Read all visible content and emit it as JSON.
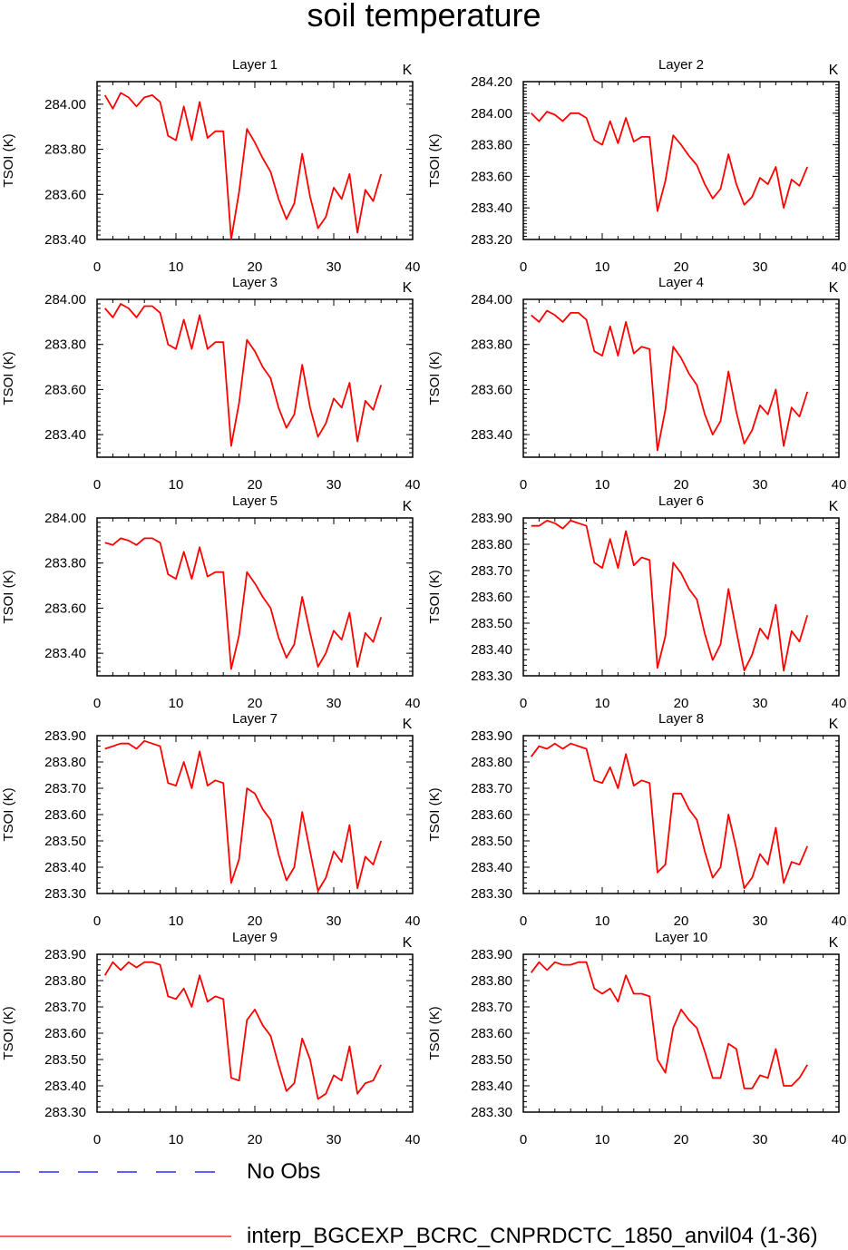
{
  "title": "soil temperature",
  "colors": {
    "model_line": "#ff0000",
    "obs_line": "#0000ff",
    "axes": "#000000"
  },
  "legend": [
    {
      "label": "No Obs",
      "style": "dashed",
      "color": "#0000ff"
    },
    {
      "label": "interp_BGCEXP_BCRC_CNPRDCTC_1850_anvil04 (1-36)",
      "style": "solid",
      "color": "#ff0000"
    }
  ],
  "chart_data": [
    {
      "type": "line",
      "title": "Layer 1",
      "units": "K",
      "ylabel": "TSOI  (K)",
      "xlim": [
        0,
        40
      ],
      "ylim": [
        283.4,
        284.1
      ],
      "xticks": [
        0,
        10,
        20,
        30,
        40
      ],
      "yticks": [
        283.4,
        283.6,
        283.8,
        284.0
      ],
      "ytick_labels": [
        "283.40",
        "283.60",
        "283.80",
        "284.00"
      ],
      "x": [
        1,
        2,
        3,
        4,
        5,
        6,
        7,
        8,
        9,
        10,
        11,
        12,
        13,
        14,
        15,
        16,
        17,
        18,
        19,
        20,
        21,
        22,
        23,
        24,
        25,
        26,
        27,
        28,
        29,
        30,
        31,
        32,
        33,
        34,
        35,
        36
      ],
      "series": [
        {
          "name": "interp_BGCEXP_BCRC_CNPRDCTC_1850_anvil04 (1-36)",
          "values": [
            284.04,
            283.98,
            284.05,
            284.03,
            283.99,
            284.03,
            284.04,
            284.01,
            283.86,
            283.84,
            283.99,
            283.84,
            284.01,
            283.85,
            283.88,
            283.88,
            283.4,
            283.61,
            283.89,
            283.83,
            283.76,
            283.7,
            283.58,
            283.49,
            283.56,
            283.78,
            283.59,
            283.45,
            283.5,
            283.63,
            283.58,
            283.69,
            283.43,
            283.62,
            283.57,
            283.69
          ]
        }
      ]
    },
    {
      "type": "line",
      "title": "Layer 2",
      "units": "K",
      "ylabel": "TSOI  (K)",
      "xlim": [
        0,
        40
      ],
      "ylim": [
        283.2,
        284.2
      ],
      "xticks": [
        0,
        10,
        20,
        30,
        40
      ],
      "yticks": [
        283.2,
        283.4,
        283.6,
        283.8,
        284.0,
        284.2
      ],
      "ytick_labels": [
        "283.20",
        "283.40",
        "283.60",
        "283.80",
        "284.00",
        "284.20"
      ],
      "x": [
        1,
        2,
        3,
        4,
        5,
        6,
        7,
        8,
        9,
        10,
        11,
        12,
        13,
        14,
        15,
        16,
        17,
        18,
        19,
        20,
        21,
        22,
        23,
        24,
        25,
        26,
        27,
        28,
        29,
        30,
        31,
        32,
        33,
        34,
        35,
        36
      ],
      "series": [
        {
          "name": "interp_BGCEXP_BCRC_CNPRDCTC_1850_anvil04 (1-36)",
          "values": [
            284.0,
            283.95,
            284.01,
            283.99,
            283.95,
            284.0,
            284.0,
            283.97,
            283.83,
            283.8,
            283.95,
            283.81,
            283.97,
            283.82,
            283.85,
            283.85,
            283.38,
            283.57,
            283.86,
            283.8,
            283.73,
            283.67,
            283.55,
            283.46,
            283.52,
            283.74,
            283.55,
            283.42,
            283.47,
            283.59,
            283.55,
            283.66,
            283.4,
            283.58,
            283.54,
            283.66
          ]
        }
      ]
    },
    {
      "type": "line",
      "title": "Layer 3",
      "units": "K",
      "ylabel": "TSOI  (K)",
      "xlim": [
        0,
        40
      ],
      "ylim": [
        283.3,
        284.0
      ],
      "xticks": [
        0,
        10,
        20,
        30,
        40
      ],
      "yticks": [
        283.4,
        283.6,
        283.8,
        284.0
      ],
      "ytick_labels": [
        "283.40",
        "283.60",
        "283.80",
        "284.00"
      ],
      "x": [
        1,
        2,
        3,
        4,
        5,
        6,
        7,
        8,
        9,
        10,
        11,
        12,
        13,
        14,
        15,
        16,
        17,
        18,
        19,
        20,
        21,
        22,
        23,
        24,
        25,
        26,
        27,
        28,
        29,
        30,
        31,
        32,
        33,
        34,
        35,
        36
      ],
      "series": [
        {
          "name": "interp_BGCEXP_BCRC_CNPRDCTC_1850_anvil04 (1-36)",
          "values": [
            283.96,
            283.92,
            283.98,
            283.96,
            283.92,
            283.97,
            283.97,
            283.94,
            283.8,
            283.78,
            283.91,
            283.78,
            283.93,
            283.78,
            283.81,
            283.81,
            283.35,
            283.54,
            283.82,
            283.77,
            283.7,
            283.65,
            283.52,
            283.43,
            283.49,
            283.71,
            283.52,
            283.39,
            283.45,
            283.56,
            283.52,
            283.63,
            283.37,
            283.55,
            283.51,
            283.62
          ]
        }
      ]
    },
    {
      "type": "line",
      "title": "Layer 4",
      "units": "K",
      "ylabel": "TSOI  (K)",
      "xlim": [
        0,
        40
      ],
      "ylim": [
        283.3,
        284.0
      ],
      "xticks": [
        0,
        10,
        20,
        30,
        40
      ],
      "yticks": [
        283.4,
        283.6,
        283.8,
        284.0
      ],
      "ytick_labels": [
        "283.40",
        "283.60",
        "283.80",
        "284.00"
      ],
      "x": [
        1,
        2,
        3,
        4,
        5,
        6,
        7,
        8,
        9,
        10,
        11,
        12,
        13,
        14,
        15,
        16,
        17,
        18,
        19,
        20,
        21,
        22,
        23,
        24,
        25,
        26,
        27,
        28,
        29,
        30,
        31,
        32,
        33,
        34,
        35,
        36
      ],
      "series": [
        {
          "name": "interp_BGCEXP_BCRC_CNPRDCTC_1850_anvil04 (1-36)",
          "values": [
            283.93,
            283.9,
            283.95,
            283.93,
            283.9,
            283.94,
            283.94,
            283.91,
            283.77,
            283.75,
            283.88,
            283.75,
            283.9,
            283.76,
            283.79,
            283.78,
            283.33,
            283.51,
            283.79,
            283.74,
            283.67,
            283.62,
            283.49,
            283.4,
            283.46,
            283.68,
            283.5,
            283.36,
            283.42,
            283.53,
            283.49,
            283.6,
            283.35,
            283.52,
            283.48,
            283.59
          ]
        }
      ]
    },
    {
      "type": "line",
      "title": "Layer 5",
      "units": "K",
      "ylabel": "TSOI  (K)",
      "xlim": [
        0,
        40
      ],
      "ylim": [
        283.3,
        284.0
      ],
      "xticks": [
        0,
        10,
        20,
        30,
        40
      ],
      "yticks": [
        283.4,
        283.6,
        283.8,
        284.0
      ],
      "ytick_labels": [
        "283.40",
        "283.60",
        "283.80",
        "284.00"
      ],
      "x": [
        1,
        2,
        3,
        4,
        5,
        6,
        7,
        8,
        9,
        10,
        11,
        12,
        13,
        14,
        15,
        16,
        17,
        18,
        19,
        20,
        21,
        22,
        23,
        24,
        25,
        26,
        27,
        28,
        29,
        30,
        31,
        32,
        33,
        34,
        35,
        36
      ],
      "series": [
        {
          "name": "interp_BGCEXP_BCRC_CNPRDCTC_1850_anvil04 (1-36)",
          "values": [
            283.89,
            283.88,
            283.91,
            283.9,
            283.88,
            283.91,
            283.91,
            283.89,
            283.75,
            283.73,
            283.85,
            283.73,
            283.87,
            283.74,
            283.76,
            283.76,
            283.33,
            283.48,
            283.76,
            283.71,
            283.65,
            283.6,
            283.47,
            283.38,
            283.44,
            283.65,
            283.49,
            283.34,
            283.4,
            283.5,
            283.46,
            283.58,
            283.34,
            283.49,
            283.45,
            283.56
          ]
        }
      ]
    },
    {
      "type": "line",
      "title": "Layer 6",
      "units": "K",
      "ylabel": "TSOI  (K)",
      "xlim": [
        0,
        40
      ],
      "ylim": [
        283.3,
        283.9
      ],
      "xticks": [
        0,
        10,
        20,
        30,
        40
      ],
      "yticks": [
        283.3,
        283.4,
        283.5,
        283.6,
        283.7,
        283.8,
        283.9
      ],
      "ytick_labels": [
        "283.30",
        "283.40",
        "283.50",
        "283.60",
        "283.70",
        "283.80",
        "283.90"
      ],
      "x": [
        1,
        2,
        3,
        4,
        5,
        6,
        7,
        8,
        9,
        10,
        11,
        12,
        13,
        14,
        15,
        16,
        17,
        18,
        19,
        20,
        21,
        22,
        23,
        24,
        25,
        26,
        27,
        28,
        29,
        30,
        31,
        32,
        33,
        34,
        35,
        36
      ],
      "series": [
        {
          "name": "interp_BGCEXP_BCRC_CNPRDCTC_1850_anvil04 (1-36)",
          "values": [
            283.87,
            283.87,
            283.89,
            283.88,
            283.86,
            283.89,
            283.88,
            283.87,
            283.73,
            283.71,
            283.82,
            283.71,
            283.85,
            283.72,
            283.75,
            283.74,
            283.33,
            283.45,
            283.73,
            283.69,
            283.63,
            283.59,
            283.46,
            283.36,
            283.42,
            283.63,
            283.47,
            283.32,
            283.38,
            283.48,
            283.44,
            283.57,
            283.32,
            283.47,
            283.43,
            283.53
          ]
        }
      ]
    },
    {
      "type": "line",
      "title": "Layer 7",
      "units": "K",
      "ylabel": "TSOI  (K)",
      "xlim": [
        0,
        40
      ],
      "ylim": [
        283.3,
        283.9
      ],
      "xticks": [
        0,
        10,
        20,
        30,
        40
      ],
      "yticks": [
        283.3,
        283.4,
        283.5,
        283.6,
        283.7,
        283.8,
        283.9
      ],
      "ytick_labels": [
        "283.30",
        "283.40",
        "283.50",
        "283.60",
        "283.70",
        "283.80",
        "283.90"
      ],
      "x": [
        1,
        2,
        3,
        4,
        5,
        6,
        7,
        8,
        9,
        10,
        11,
        12,
        13,
        14,
        15,
        16,
        17,
        18,
        19,
        20,
        21,
        22,
        23,
        24,
        25,
        26,
        27,
        28,
        29,
        30,
        31,
        32,
        33,
        34,
        35,
        36
      ],
      "series": [
        {
          "name": "interp_BGCEXP_BCRC_CNPRDCTC_1850_anvil04 (1-36)",
          "values": [
            283.85,
            283.86,
            283.87,
            283.87,
            283.85,
            283.88,
            283.87,
            283.86,
            283.72,
            283.71,
            283.8,
            283.7,
            283.84,
            283.71,
            283.73,
            283.72,
            283.34,
            283.43,
            283.7,
            283.68,
            283.62,
            283.58,
            283.45,
            283.35,
            283.4,
            283.61,
            283.46,
            283.31,
            283.36,
            283.46,
            283.42,
            283.56,
            283.32,
            283.44,
            283.41,
            283.5
          ]
        }
      ]
    },
    {
      "type": "line",
      "title": "Layer 8",
      "units": "K",
      "ylabel": "TSOI  (K)",
      "xlim": [
        0,
        40
      ],
      "ylim": [
        283.3,
        283.9
      ],
      "xticks": [
        0,
        10,
        20,
        30,
        40
      ],
      "yticks": [
        283.3,
        283.4,
        283.5,
        283.6,
        283.7,
        283.8,
        283.9
      ],
      "ytick_labels": [
        "283.30",
        "283.40",
        "283.50",
        "283.60",
        "283.70",
        "283.80",
        "283.90"
      ],
      "x": [
        1,
        2,
        3,
        4,
        5,
        6,
        7,
        8,
        9,
        10,
        11,
        12,
        13,
        14,
        15,
        16,
        17,
        18,
        19,
        20,
        21,
        22,
        23,
        24,
        25,
        26,
        27,
        28,
        29,
        30,
        31,
        32,
        33,
        34,
        35,
        36
      ],
      "series": [
        {
          "name": "interp_BGCEXP_BCRC_CNPRDCTC_1850_anvil04 (1-36)",
          "values": [
            283.82,
            283.86,
            283.85,
            283.87,
            283.85,
            283.87,
            283.86,
            283.85,
            283.73,
            283.72,
            283.78,
            283.7,
            283.83,
            283.71,
            283.73,
            283.72,
            283.38,
            283.41,
            283.68,
            283.68,
            283.62,
            283.58,
            283.46,
            283.36,
            283.4,
            283.6,
            283.47,
            283.32,
            283.36,
            283.45,
            283.41,
            283.55,
            283.34,
            283.42,
            283.41,
            283.48
          ]
        }
      ]
    },
    {
      "type": "line",
      "title": "Layer 9",
      "units": "K",
      "ylabel": "TSOI  (K)",
      "xlim": [
        0,
        40
      ],
      "ylim": [
        283.3,
        283.9
      ],
      "xticks": [
        0,
        10,
        20,
        30,
        40
      ],
      "yticks": [
        283.3,
        283.4,
        283.5,
        283.6,
        283.7,
        283.8,
        283.9
      ],
      "ytick_labels": [
        "283.30",
        "283.40",
        "283.50",
        "283.60",
        "283.70",
        "283.80",
        "283.90"
      ],
      "x": [
        1,
        2,
        3,
        4,
        5,
        6,
        7,
        8,
        9,
        10,
        11,
        12,
        13,
        14,
        15,
        16,
        17,
        18,
        19,
        20,
        21,
        22,
        23,
        24,
        25,
        26,
        27,
        28,
        29,
        30,
        31,
        32,
        33,
        34,
        35,
        36
      ],
      "series": [
        {
          "name": "interp_BGCEXP_BCRC_CNPRDCTC_1850_anvil04 (1-36)",
          "values": [
            283.82,
            283.87,
            283.84,
            283.87,
            283.85,
            283.87,
            283.87,
            283.86,
            283.74,
            283.73,
            283.77,
            283.7,
            283.82,
            283.72,
            283.74,
            283.73,
            283.43,
            283.42,
            283.65,
            283.69,
            283.63,
            283.59,
            283.48,
            283.38,
            283.41,
            283.58,
            283.5,
            283.35,
            283.37,
            283.44,
            283.42,
            283.55,
            283.37,
            283.41,
            283.42,
            283.48
          ]
        }
      ]
    },
    {
      "type": "line",
      "title": "Layer 10",
      "units": "K",
      "ylabel": "TSOI  (K)",
      "xlim": [
        0,
        40
      ],
      "ylim": [
        283.3,
        283.9
      ],
      "xticks": [
        0,
        10,
        20,
        30,
        40
      ],
      "yticks": [
        283.3,
        283.4,
        283.5,
        283.6,
        283.7,
        283.8,
        283.9
      ],
      "ytick_labels": [
        "283.30",
        "283.40",
        "283.50",
        "283.60",
        "283.70",
        "283.80",
        "283.90"
      ],
      "x": [
        1,
        2,
        3,
        4,
        5,
        6,
        7,
        8,
        9,
        10,
        11,
        12,
        13,
        14,
        15,
        16,
        17,
        18,
        19,
        20,
        21,
        22,
        23,
        24,
        25,
        26,
        27,
        28,
        29,
        30,
        31,
        32,
        33,
        34,
        35,
        36
      ],
      "series": [
        {
          "name": "interp_BGCEXP_BCRC_CNPRDCTC_1850_anvil04 (1-36)",
          "values": [
            283.83,
            283.87,
            283.84,
            283.87,
            283.86,
            283.86,
            283.87,
            283.87,
            283.77,
            283.75,
            283.77,
            283.72,
            283.82,
            283.75,
            283.75,
            283.74,
            283.5,
            283.45,
            283.62,
            283.69,
            283.65,
            283.62,
            283.53,
            283.43,
            283.43,
            283.56,
            283.54,
            283.39,
            283.39,
            283.44,
            283.43,
            283.54,
            283.4,
            283.4,
            283.43,
            283.48
          ]
        }
      ]
    }
  ]
}
